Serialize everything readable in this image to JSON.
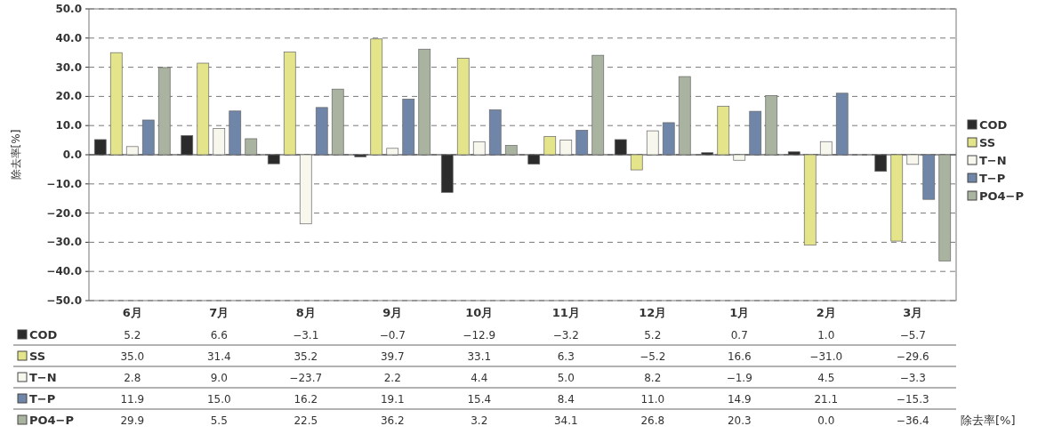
{
  "chart_data": {
    "type": "bar",
    "ylabel": "除去率[%]",
    "categories": [
      "6月",
      "7月",
      "8月",
      "9月",
      "10月",
      "11月",
      "12月",
      "1月",
      "2月",
      "3月"
    ],
    "series": [
      {
        "name": "COD",
        "color": "#2b2b2b",
        "values": [
          5.2,
          6.6,
          -3.1,
          -0.7,
          -12.9,
          -3.2,
          5.2,
          0.7,
          1.0,
          -5.7
        ],
        "value_labels": [
          "5.2",
          "6.6",
          "−3.1",
          "−0.7",
          "−12.9",
          "−3.2",
          "5.2",
          "0.7",
          "1.0",
          "−5.7"
        ]
      },
      {
        "name": "SS",
        "color": "#e4e48a",
        "values": [
          35.0,
          31.4,
          35.2,
          39.7,
          33.1,
          6.3,
          -5.2,
          16.6,
          -31.0,
          -29.6
        ],
        "value_labels": [
          "35.0",
          "31.4",
          "35.2",
          "39.7",
          "33.1",
          "6.3",
          "−5.2",
          "16.6",
          "−31.0",
          "−29.6"
        ]
      },
      {
        "name": "T−N",
        "color": "#f7f7ee",
        "values": [
          2.8,
          9.0,
          -23.7,
          2.2,
          4.4,
          5.0,
          8.2,
          -1.9,
          4.5,
          -3.3
        ],
        "value_labels": [
          "2.8",
          "9.0",
          "−23.7",
          "2.2",
          "4.4",
          "5.0",
          "8.2",
          "−1.9",
          "4.5",
          "−3.3"
        ]
      },
      {
        "name": "T−P",
        "color": "#6f86a8",
        "values": [
          11.9,
          15.0,
          16.2,
          19.1,
          15.4,
          8.4,
          11.0,
          14.9,
          21.1,
          -15.3
        ],
        "value_labels": [
          "11.9",
          "15.0",
          "16.2",
          "19.1",
          "15.4",
          "8.4",
          "11.0",
          "14.9",
          "21.1",
          "−15.3"
        ]
      },
      {
        "name": "PO4−P",
        "color": "#a9b3a0",
        "values": [
          29.9,
          5.5,
          22.5,
          36.2,
          3.2,
          34.1,
          26.8,
          20.3,
          0.0,
          -36.4
        ],
        "value_labels": [
          "29.9",
          "5.5",
          "22.5",
          "36.2",
          "3.2",
          "34.1",
          "26.8",
          "20.3",
          "0.0",
          "−36.4"
        ]
      }
    ],
    "ylim": [
      -50,
      50
    ],
    "yticks": [
      {
        "value": -50,
        "label": "−50.0"
      },
      {
        "value": -40,
        "label": "−40.0"
      },
      {
        "value": -30,
        "label": "−30.0"
      },
      {
        "value": -20,
        "label": "−20.0"
      },
      {
        "value": -10,
        "label": "−10.0"
      },
      {
        "value": 0,
        "label": "0.0"
      },
      {
        "value": 10,
        "label": "10.0"
      },
      {
        "value": 20,
        "label": "20.0"
      },
      {
        "value": 30,
        "label": "30.0"
      },
      {
        "value": 40,
        "label": "40.0"
      },
      {
        "value": 50,
        "label": "50.0"
      }
    ],
    "grid": "y",
    "legend": "right",
    "data_labels": true,
    "annotations": [
      "除去率[%]"
    ]
  }
}
